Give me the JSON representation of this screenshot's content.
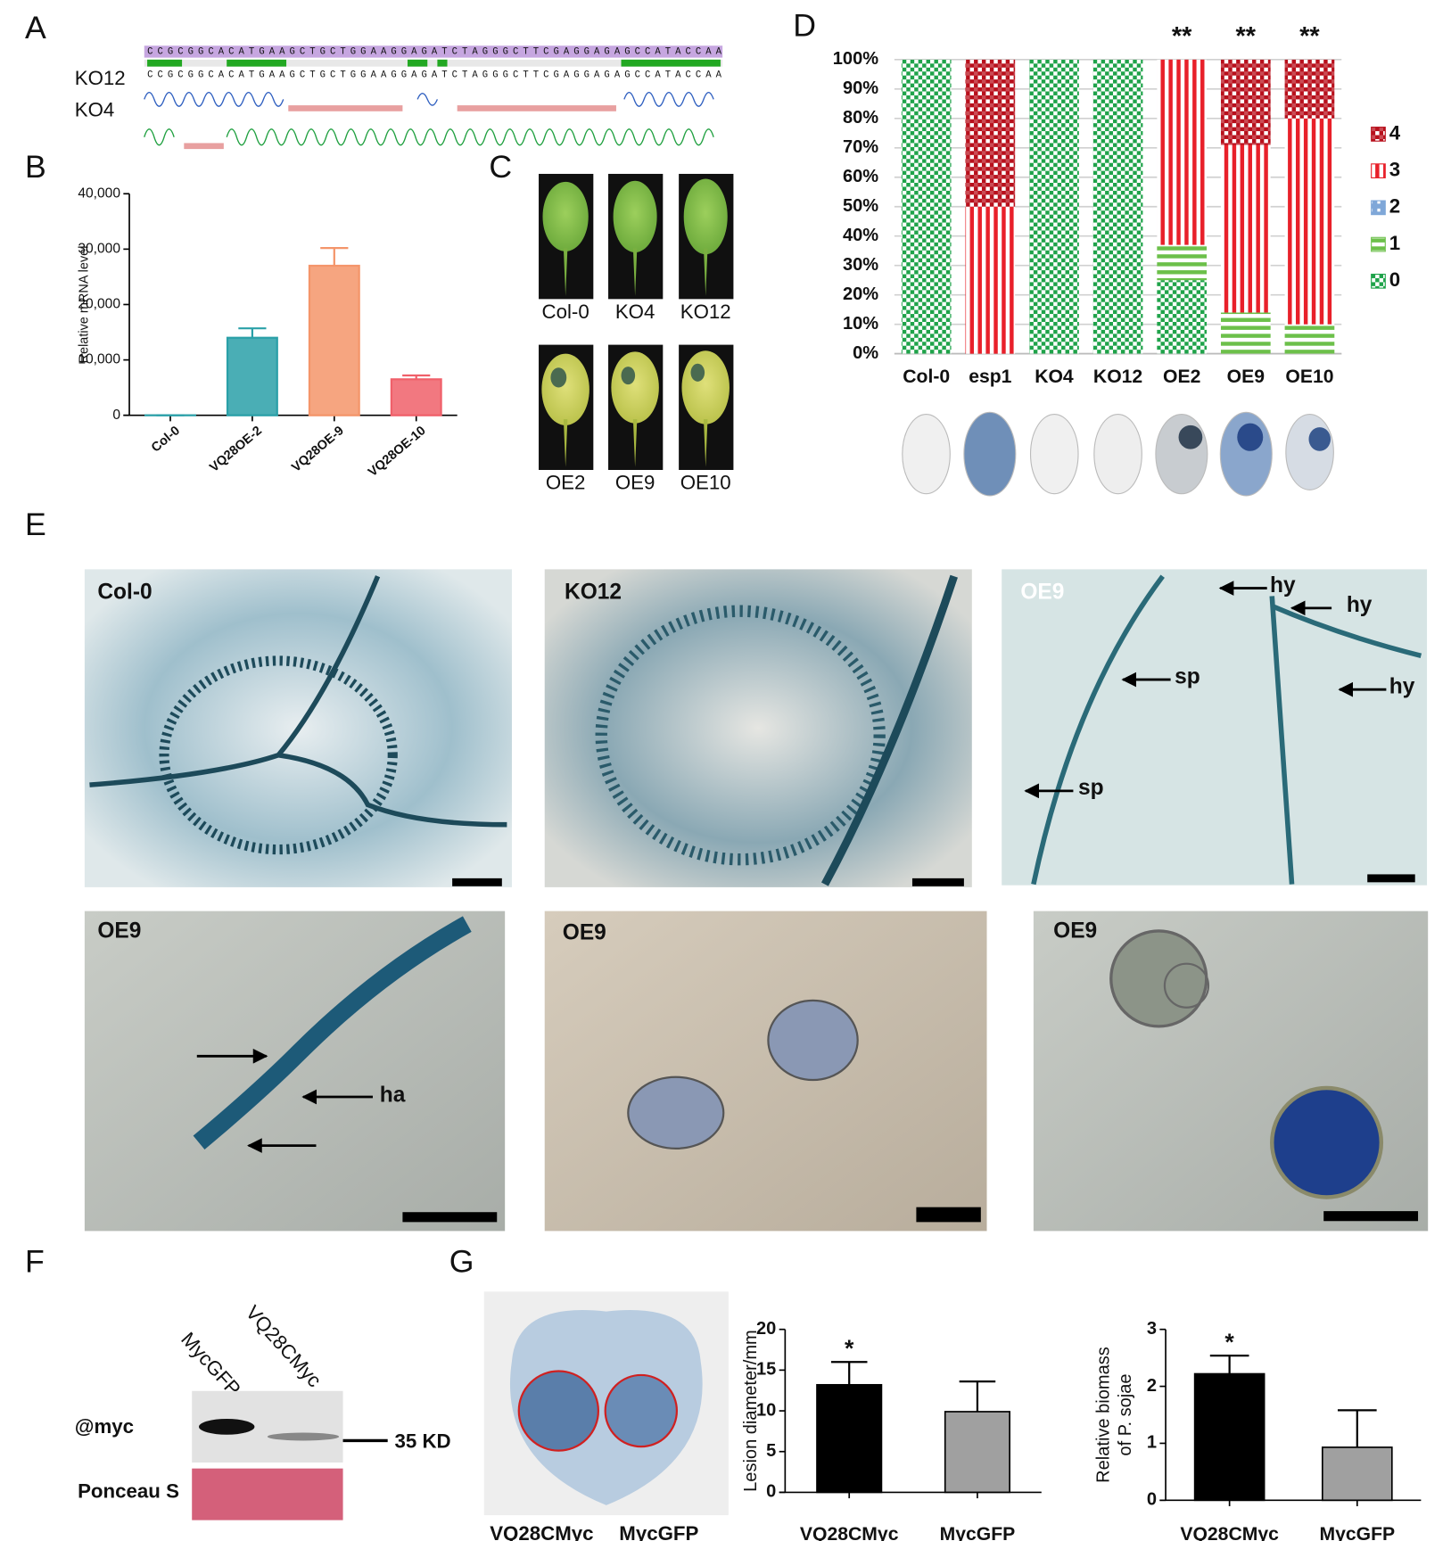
{
  "panel_labels": [
    "A",
    "B",
    "C",
    "D",
    "E",
    "F",
    "G"
  ],
  "panel_a": {
    "rows": [
      "KO12",
      "KO4"
    ],
    "sequence": "CCGCGGCACATGAAGCTGCTGGAAGGAGATCTAGGGCTTCGAGGAGAGCCATACCAA"
  },
  "panel_c": {
    "labels": [
      "Col-0",
      "KO4",
      "KO12",
      "OE2",
      "OE9",
      "OE10"
    ]
  },
  "panel_e": {
    "images": [
      {
        "label": "Col-0"
      },
      {
        "label": "KO12"
      },
      {
        "label": "OE9",
        "annotations": [
          "hy",
          "hy",
          "sp",
          "hy",
          "sp"
        ]
      },
      {
        "label": "OE9",
        "annotations": [
          "ha"
        ]
      },
      {
        "label": "OE9"
      },
      {
        "label": "OE9"
      }
    ]
  },
  "panel_f": {
    "lanes": [
      "MycGFP",
      "VQ28CMyc"
    ],
    "rows": [
      "@myc",
      "Ponceau S"
    ],
    "marker": "35 KD"
  },
  "panel_g": {
    "leaf_labels": [
      "VQ28CMyc",
      "MycGFP"
    ]
  },
  "chart_data": [
    {
      "type": "bar",
      "y_label": "Relative mRNA level",
      "categories": [
        "Col-0",
        "VQ28OE-2",
        "VQ28OE-9",
        "VQ28OE-10"
      ],
      "values": [
        1,
        14000,
        27000,
        6500
      ],
      "errors": [
        0,
        1700,
        3200,
        700
      ],
      "colors": [
        "#2aa0a8",
        "#2aa0a8",
        "#f4956a",
        "#f0606a"
      ],
      "ylim": [
        0,
        40000
      ],
      "yticks": [
        0,
        {
          "value": 10000,
          "label": "10,000"
        },
        {
          "value": 20000,
          "label": "20,000"
        },
        {
          "value": 30000,
          "label": "30,000"
        },
        {
          "value": 40000,
          "label": "40,000"
        }
      ]
    },
    {
      "type": "stacked_bar",
      "categories": [
        "Col-0",
        "esp1",
        "KO4",
        "KO12",
        "OE2",
        "OE9",
        "OE10"
      ],
      "series": [
        {
          "name": "0",
          "color": "#1fa34a",
          "values": [
            100,
            0,
            100,
            100,
            25,
            0,
            0
          ]
        },
        {
          "name": "1",
          "color": "#6cc04a",
          "values": [
            0,
            0,
            0,
            0,
            12,
            14,
            10
          ]
        },
        {
          "name": "2",
          "color": "#7fa7d8",
          "values": [
            0,
            0,
            0,
            0,
            0,
            0,
            0
          ]
        },
        {
          "name": "3",
          "color": "#e8202a",
          "values": [
            0,
            50,
            0,
            0,
            63,
            57,
            70
          ]
        },
        {
          "name": "4",
          "color": "#b8101c",
          "values": [
            0,
            50,
            0,
            0,
            0,
            29,
            20
          ]
        }
      ],
      "significance": [
        null,
        null,
        null,
        null,
        "**",
        "**",
        "**"
      ],
      "ylim": [
        0,
        100
      ],
      "grid": true,
      "yticks": [
        {
          "value": 0,
          "label": "0%"
        },
        {
          "value": 10,
          "label": "10%"
        },
        {
          "value": 20,
          "label": "20%"
        },
        {
          "value": 30,
          "label": "30%"
        },
        {
          "value": 40,
          "label": "40%"
        },
        {
          "value": 50,
          "label": "50%"
        },
        {
          "value": 60,
          "label": "60%"
        },
        {
          "value": 70,
          "label": "70%"
        },
        {
          "value": 80,
          "label": "80%"
        },
        {
          "value": 90,
          "label": "90%"
        },
        {
          "value": 100,
          "label": "100%"
        }
      ]
    },
    {
      "type": "bar",
      "y_label": "Lesion diameter/mm",
      "categories": [
        "VQ28CMyc",
        "MycGFP"
      ],
      "values": [
        13.2,
        9.9
      ],
      "errors": [
        2.8,
        3.7
      ],
      "colors": [
        "#000000",
        "#a0a0a0"
      ],
      "significance": [
        "*",
        null
      ],
      "ylim": [
        0,
        20
      ],
      "yticks": [
        0,
        5,
        10,
        15,
        20
      ]
    },
    {
      "type": "bar",
      "y_label": [
        "Relative biomass",
        "of P. sojae"
      ],
      "categories": [
        "VQ28CMyc",
        "MycGFP"
      ],
      "values": [
        2.22,
        0.93
      ],
      "errors": [
        0.32,
        0.65
      ],
      "colors": [
        "#000000",
        "#a0a0a0"
      ],
      "significance": [
        "*",
        null
      ],
      "ylim": [
        0,
        3
      ],
      "yticks": [
        0,
        1,
        2,
        3
      ]
    }
  ]
}
